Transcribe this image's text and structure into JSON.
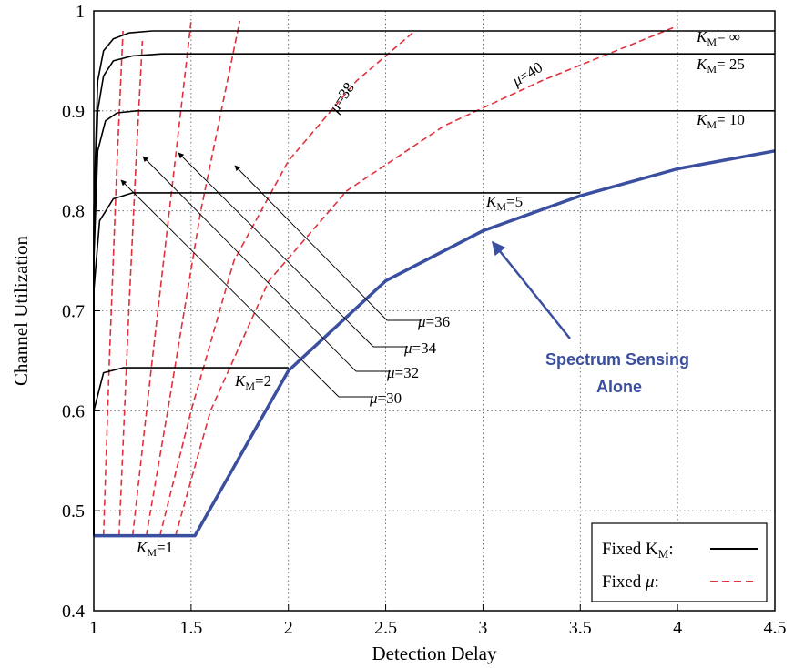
{
  "chart_data": {
    "type": "line",
    "title": "",
    "xlabel": "Detection Delay",
    "ylabel": "Channel Utilization",
    "xlim": [
      1,
      4.5
    ],
    "ylim": [
      0.4,
      1
    ],
    "x_ticks": [
      "1",
      "1.5",
      "2",
      "2.5",
      "3",
      "3.5",
      "4",
      "4.5"
    ],
    "y_ticks": [
      "0.4",
      "0.5",
      "0.6",
      "0.7",
      "0.8",
      "0.9",
      "1"
    ],
    "grid": true,
    "legend_position": "bottom-right",
    "legend": [
      {
        "label": "Fixed K",
        "sub": "M",
        "suffix": ":",
        "style": "solid",
        "color": "#000000"
      },
      {
        "label": "Fixed ",
        "italic": "μ",
        "suffix": ":",
        "style": "dashed",
        "color": "#e0303c"
      }
    ],
    "fixed_km_series": [
      {
        "label": "K",
        "sub": "M",
        "eq": "=1",
        "x": [
          1.0,
          1.5
        ],
        "y": [
          0.475,
          0.475
        ]
      },
      {
        "label": "K",
        "sub": "M",
        "eq": "=2",
        "x": [
          1.0,
          1.0,
          1.05,
          1.15,
          2.0
        ],
        "y": [
          0.475,
          0.6,
          0.638,
          0.643,
          0.643
        ]
      },
      {
        "label": "K",
        "sub": "M",
        "eq": "=5",
        "x": [
          1.0,
          1.0,
          1.03,
          1.1,
          1.2,
          3.5
        ],
        "y": [
          0.475,
          0.72,
          0.79,
          0.812,
          0.818,
          0.818
        ]
      },
      {
        "label": "K",
        "sub": "M",
        "eq": "= 10",
        "x": [
          1.0,
          1.0,
          1.02,
          1.06,
          1.12,
          1.22,
          4.5
        ],
        "y": [
          0.475,
          0.75,
          0.86,
          0.89,
          0.898,
          0.9,
          0.9
        ]
      },
      {
        "label": "K",
        "sub": "M",
        "eq": "= 25",
        "x": [
          1.0,
          1.0,
          1.02,
          1.05,
          1.1,
          1.2,
          1.35,
          4.5
        ],
        "y": [
          0.475,
          0.78,
          0.9,
          0.935,
          0.95,
          0.955,
          0.957,
          0.957
        ]
      },
      {
        "label": "K",
        "sub": "M",
        "eq": "= ∞",
        "x": [
          1.0,
          1.0,
          1.02,
          1.05,
          1.1,
          1.18,
          1.3,
          4.5
        ],
        "y": [
          0.475,
          0.8,
          0.93,
          0.96,
          0.972,
          0.978,
          0.98,
          0.98
        ]
      }
    ],
    "fixed_mu_series": [
      {
        "label": "μ",
        "eq": "=30",
        "x": [
          1.05,
          1.08,
          1.12,
          1.15
        ],
        "y": [
          0.475,
          0.65,
          0.85,
          0.98
        ]
      },
      {
        "label": "μ",
        "eq": "=32",
        "x": [
          1.13,
          1.18,
          1.22,
          1.25
        ],
        "y": [
          0.475,
          0.7,
          0.86,
          0.97
        ]
      },
      {
        "label": "μ",
        "eq": "=34",
        "x": [
          1.2,
          1.3,
          1.4,
          1.5
        ],
        "y": [
          0.475,
          0.65,
          0.82,
          0.99
        ]
      },
      {
        "label": "μ",
        "eq": "=36",
        "x": [
          1.27,
          1.38,
          1.55,
          1.75
        ],
        "y": [
          0.475,
          0.6,
          0.8,
          0.99
        ]
      },
      {
        "label": "μ",
        "eq": "=38",
        "x": [
          1.34,
          1.5,
          1.72,
          2.0,
          2.35,
          2.65
        ],
        "y": [
          0.475,
          0.6,
          0.75,
          0.85,
          0.93,
          0.98
        ]
      },
      {
        "label": "μ",
        "eq": "=40",
        "x": [
          1.42,
          1.6,
          1.9,
          2.3,
          2.8,
          3.3,
          4.0
        ],
        "y": [
          0.475,
          0.6,
          0.73,
          0.82,
          0.885,
          0.93,
          0.985
        ]
      }
    ],
    "spectrum_sensing_series": {
      "label_line1": "Spectrum Sensing",
      "label_line2": "Alone",
      "color": "#3b4fa0",
      "x": [
        1.0,
        1.52,
        2.0,
        2.5,
        3.0,
        3.5,
        4.0,
        4.5
      ],
      "y": [
        0.475,
        0.475,
        0.64,
        0.73,
        0.78,
        0.815,
        0.842,
        0.86
      ]
    },
    "mu_arrow_labels": [
      {
        "label": "μ",
        "eq": "=36"
      },
      {
        "label": "μ",
        "eq": "=34"
      },
      {
        "label": "μ",
        "eq": "=32"
      },
      {
        "label": "μ",
        "eq": "=30"
      }
    ]
  }
}
